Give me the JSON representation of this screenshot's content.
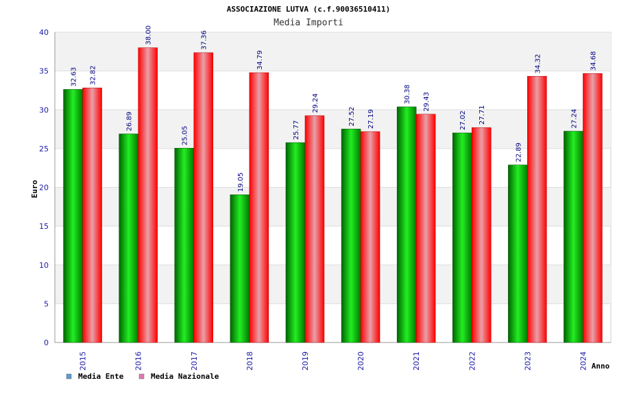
{
  "chart_data": {
    "type": "bar",
    "title": "ASSOCIAZIONE LUTVA (c.f.90036510411)",
    "subtitle": "Media Importi",
    "xlabel": "Anno",
    "ylabel": "Euro",
    "ylim": [
      0,
      40
    ],
    "yticks": [
      "0",
      "5",
      "10",
      "15",
      "20",
      "25",
      "30",
      "35",
      "40"
    ],
    "grid": true,
    "legend_position": "bottom-left",
    "categories": [
      "2015",
      "2016",
      "2017",
      "2018",
      "2019",
      "2020",
      "2021",
      "2022",
      "2023",
      "2024"
    ],
    "series": [
      {
        "name": "Media Ente",
        "color": "#00a000",
        "legend_color": "#5b9bd5",
        "values": [
          32.63,
          26.89,
          25.05,
          19.05,
          25.77,
          27.52,
          30.38,
          27.02,
          22.89,
          27.24
        ],
        "labels": [
          "32.63",
          "26.89",
          "25.05",
          "19.05",
          "25.77",
          "27.52",
          "30.38",
          "27.02",
          "22.89",
          "27.24"
        ]
      },
      {
        "name": "Media Nazionale",
        "color": "#ff0000",
        "legend_color": "#e07ab0",
        "values": [
          32.82,
          38.0,
          37.36,
          34.79,
          29.24,
          27.19,
          29.43,
          27.71,
          34.32,
          34.68
        ],
        "labels": [
          "32.82",
          "38.00",
          "37.36",
          "34.79",
          "29.24",
          "27.19",
          "29.43",
          "27.71",
          "34.32",
          "34.68"
        ]
      }
    ]
  }
}
